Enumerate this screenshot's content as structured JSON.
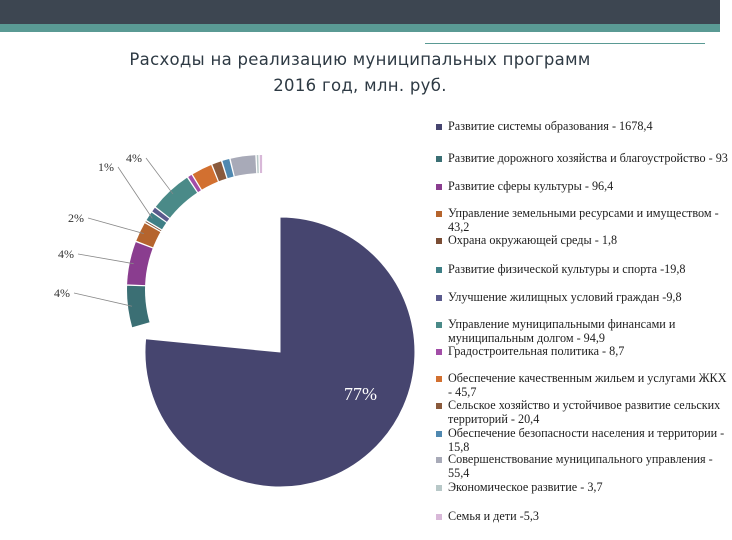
{
  "slide": {
    "title_line1": "Расходы на реализацию муниципальных программ",
    "title_line2": "2016 год, млн. руб.",
    "colors": {
      "topbar": "#3d4651",
      "accent": "#5a9a94"
    }
  },
  "chart_data": {
    "type": "pie",
    "title": "Расходы на реализацию муниципальных программ 2016 год, млн. руб.",
    "exploded": true,
    "legend_position": "right",
    "slices": [
      {
        "legend": "Развитие системы образования - 1678,4",
        "value": 1678.4,
        "pct_label": "77%",
        "color": "#46456f"
      },
      {
        "legend": "Развитие  дорожного хозяйства и благоустройство - 93",
        "value": 93,
        "pct_label": "4%",
        "color": "#3b6f74"
      },
      {
        "legend": "Развитие сферы культуры - 96,4",
        "value": 96.4,
        "pct_label": "4%",
        "color": "#8a3d8f"
      },
      {
        "legend": "Управление земельными ресурсами и имуществом - 43,2",
        "value": 43.2,
        "pct_label": "2%",
        "color": "#b5642d"
      },
      {
        "legend": "Охрана окружающей среды - 1,8",
        "value": 1.8,
        "pct_label": "",
        "color": "#7a4d35"
      },
      {
        "legend": "Развитие физической культуры и спорта -19,8",
        "value": 19.8,
        "pct_label": "1%",
        "color": "#3e7f86"
      },
      {
        "legend": "Улучшение жилищных условий граждан -9,8",
        "value": 9.8,
        "pct_label": "",
        "color": "#5a5a8c"
      },
      {
        "legend": "Управление муниципальными финансами и муниципальным долгом - 94,9",
        "value": 94.9,
        "pct_label": "4%",
        "color": "#4a8a88"
      },
      {
        "legend": "Градостроительная политика - 8,7",
        "value": 8.7,
        "pct_label": "",
        "color": "#a24da7"
      },
      {
        "legend": "Обеспечение качественным жильем и услугами ЖКХ - 45,7",
        "value": 45.7,
        "pct_label": "",
        "color": "#d27030"
      },
      {
        "legend": "Сельское хозяйство и устойчивое развитие сельских территорий - 20,4",
        "value": 20.4,
        "pct_label": "",
        "color": "#8a5a3c"
      },
      {
        "legend": "Обеспечение  безопасности населения и территории - 15,8",
        "value": 15.8,
        "pct_label": "",
        "color": "#4f88b0"
      },
      {
        "legend": "Совершенствование муниципального управления - 55,4",
        "value": 55.4,
        "pct_label": "",
        "color": "#a8aab8"
      },
      {
        "legend": "Экономическое развитие  - 3,7",
        "value": 3.7,
        "pct_label": "",
        "color": "#b8c8c8"
      },
      {
        "legend": "Семья и дети -5,3",
        "value": 5.3,
        "pct_label": "",
        "color": "#d8b8d8"
      }
    ]
  }
}
